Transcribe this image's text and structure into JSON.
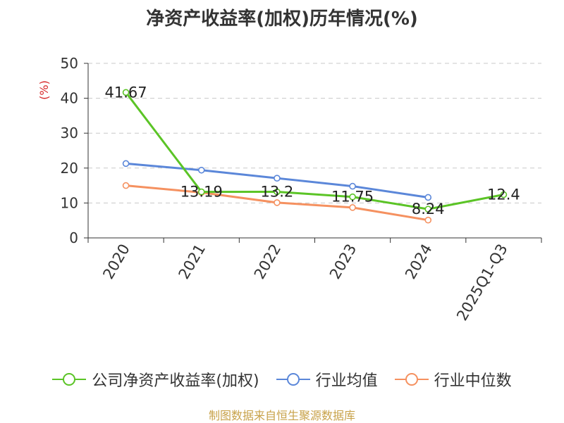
{
  "chart_data": {
    "type": "line",
    "title": "净资产收益率(加权)历年情况(%)",
    "ylabel": "(%)",
    "ylim": [
      0,
      50
    ],
    "yticks": [
      0,
      10,
      20,
      30,
      40,
      50
    ],
    "grid": true,
    "legend_position": "bottom",
    "categories": [
      "2020",
      "2021",
      "2022",
      "2023",
      "2024",
      "2025Q1-Q3"
    ],
    "series": [
      {
        "name": "公司净资产收益率(加权)",
        "color": "#5bc426",
        "values": [
          41.67,
          13.19,
          13.2,
          11.75,
          8.24,
          12.4
        ],
        "labels": [
          "41.67",
          "13.19",
          "13.2",
          "11.75",
          "8.24",
          "12.4"
        ]
      },
      {
        "name": "行业均值",
        "color": "#5b87d9",
        "values": [
          21.3,
          19.4,
          17.1,
          14.8,
          11.6,
          null
        ]
      },
      {
        "name": "行业中位数",
        "color": "#f59160",
        "values": [
          15.0,
          13.0,
          10.1,
          8.7,
          5.1,
          null
        ]
      }
    ]
  },
  "source": "制图数据来自恒生聚源数据库"
}
